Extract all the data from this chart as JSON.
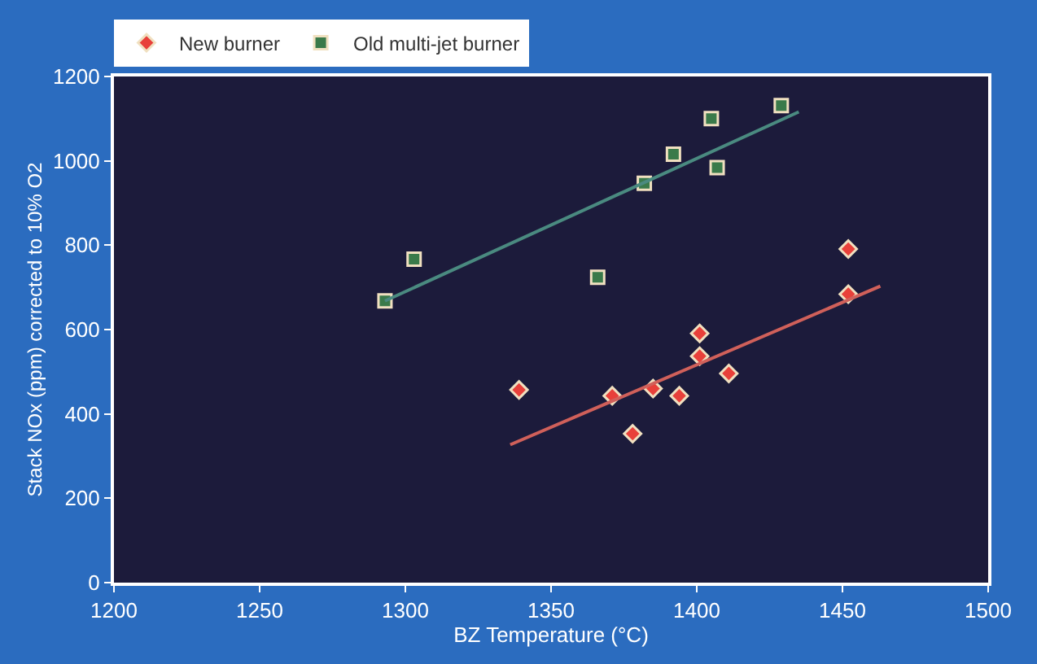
{
  "chart_data": {
    "type": "scatter",
    "xlabel": "BZ Temperature (°C)",
    "ylabel": "Stack NOx (ppm) corrected to 10% O2",
    "xlim": [
      1200,
      1500
    ],
    "xticks": [
      1200,
      1250,
      1300,
      1350,
      1400,
      1450,
      1500
    ],
    "ylim": [
      0,
      1200
    ],
    "yticks": [
      0,
      200,
      400,
      600,
      800,
      1000,
      1200
    ],
    "grid": false,
    "legend": "top left",
    "series": [
      {
        "name": "New burner",
        "marker": "diamond",
        "color": "#e8403a",
        "x": [
          1339,
          1371,
          1378,
          1385,
          1394,
          1401,
          1401,
          1411,
          1452,
          1452
        ],
        "values": [
          457,
          443,
          353,
          460,
          443,
          591,
          537,
          496,
          791,
          684
        ]
      },
      {
        "name": "Old multi-jet burner",
        "marker": "square",
        "color": "#3a7a4a",
        "x": [
          1293,
          1303,
          1366,
          1382,
          1392,
          1405,
          1407,
          1429
        ],
        "values": [
          668,
          767,
          724,
          947,
          1016,
          1100,
          984,
          1131
        ]
      },
      {
        "type": "line",
        "line_style": "solid",
        "color": "#d0605a",
        "x": [
          1336,
          1463
        ],
        "values": [
          327,
          703
        ]
      },
      {
        "type": "line",
        "line_style": "solid",
        "color": "#4a8a80",
        "x": [
          1293,
          1435
        ],
        "values": [
          668,
          1116
        ]
      }
    ]
  }
}
